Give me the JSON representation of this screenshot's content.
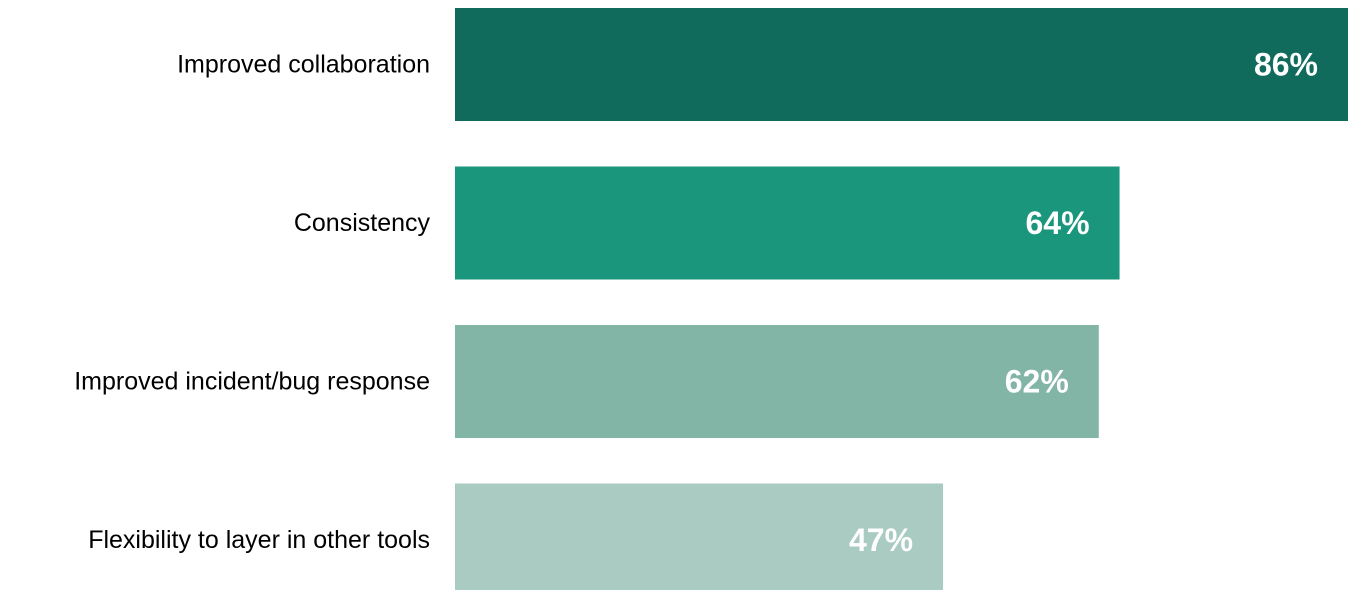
{
  "chart_data": {
    "type": "bar",
    "orientation": "horizontal",
    "title": "",
    "xlabel": "",
    "ylabel": "",
    "xlim": [
      0,
      86
    ],
    "grid": false,
    "legend": "none",
    "categories": [
      "Improved collaboration",
      "Consistency",
      "Improved incident/bug response",
      "Flexibility to layer in other tools"
    ],
    "values": [
      86,
      64,
      62,
      47
    ],
    "value_labels": [
      "86%",
      "64%",
      "62%",
      "47%"
    ],
    "colors": [
      "#106b5c",
      "#1a967d",
      "#83b5a7",
      "#a9cbc1"
    ]
  }
}
